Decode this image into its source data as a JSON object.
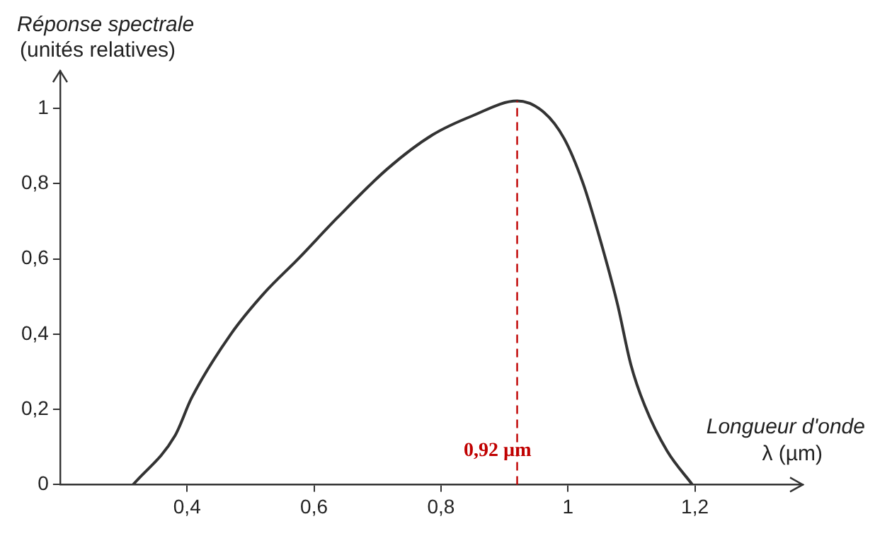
{
  "chart_data": {
    "type": "line",
    "ylabel": "Réponse spectrale\n(unités relatives)",
    "xlabel": "Longueur d'onde\nλ (µm)",
    "series": [
      {
        "color": "#333333",
        "x": [
          0.315,
          0.381,
          0.407,
          0.469,
          0.522,
          0.575,
          0.637,
          0.716,
          0.787,
          0.849,
          0.92,
          0.962,
          0.994,
          1.024,
          1.051,
          1.078,
          1.099,
          1.121,
          1.156,
          1.196
        ],
        "values": [
          0,
          0.13,
          0.23,
          0.4,
          0.51,
          0.6,
          0.71,
          0.84,
          0.93,
          0.98,
          1.02,
          0.99,
          0.92,
          0.8,
          0.65,
          0.48,
          0.32,
          0.21,
          0.09,
          0
        ]
      }
    ],
    "xlim": [
      0.2,
      1.37
    ],
    "ylim": [
      0,
      1.1
    ],
    "xticks": [
      {
        "value": 0.4,
        "label": "0,4"
      },
      {
        "value": 0.6,
        "label": "0,6"
      },
      {
        "value": 0.8,
        "label": "0,8"
      },
      1,
      {
        "value": 1.2,
        "label": "1,2"
      }
    ],
    "yticks": [
      0,
      {
        "value": 0.2,
        "label": "0,2"
      },
      {
        "value": 0.4,
        "label": "0,4"
      },
      {
        "value": 0.6,
        "label": "0,6"
      },
      {
        "value": 0.8,
        "label": "0,8"
      },
      1
    ],
    "ref_lines": [
      {
        "axis": "x",
        "value": 0.92,
        "label": "0,92 µm",
        "color": "#c00000",
        "line_style": "dashed"
      }
    ],
    "marker": "none",
    "line_style": "solid",
    "legend": false
  }
}
